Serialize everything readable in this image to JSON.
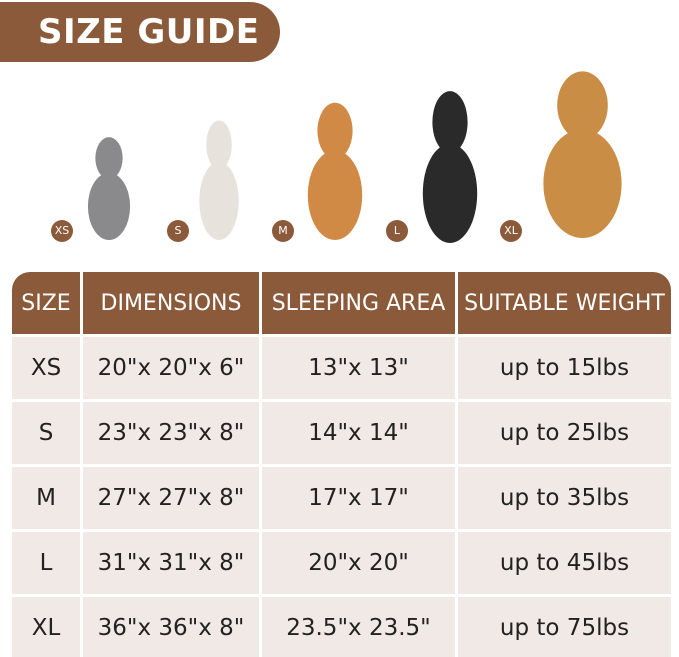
{
  "title": "SIZE GUIDE",
  "pets": [
    {
      "size": "XS",
      "animal": "cat",
      "color": "#8a8a8c"
    },
    {
      "size": "S",
      "animal": "french-bulldog",
      "color": "#e8e2dc"
    },
    {
      "size": "M",
      "animal": "corgi",
      "color": "#d08a45"
    },
    {
      "size": "L",
      "animal": "border-collie",
      "color": "#2a2a2a"
    },
    {
      "size": "XL",
      "animal": "golden-retriever",
      "color": "#c98d45"
    }
  ],
  "table": {
    "headers": [
      "SIZE",
      "DIMENSIONS",
      "SLEEPING AREA",
      "SUITABLE WEIGHT"
    ],
    "rows": [
      [
        "XS",
        "20\"x 20\"x 6\"",
        "13\"x 13\"",
        "up to 15lbs"
      ],
      [
        "S",
        "23\"x 23\"x 8\"",
        "14\"x 14\"",
        "up to 25lbs"
      ],
      [
        "M",
        "27\"x 27\"x 8\"",
        "17\"x 17\"",
        "up to 35lbs"
      ],
      [
        "L",
        "31\"x 31\"x 8\"",
        "20\"x 20\"",
        "up to 45lbs"
      ],
      [
        "XL",
        "36\"x 36\"x 8\"",
        "23.5\"x 23.5\"",
        "up to 75lbs"
      ]
    ]
  },
  "colors": {
    "brand": "#8b5a3a",
    "row": "#f0e9e5"
  }
}
